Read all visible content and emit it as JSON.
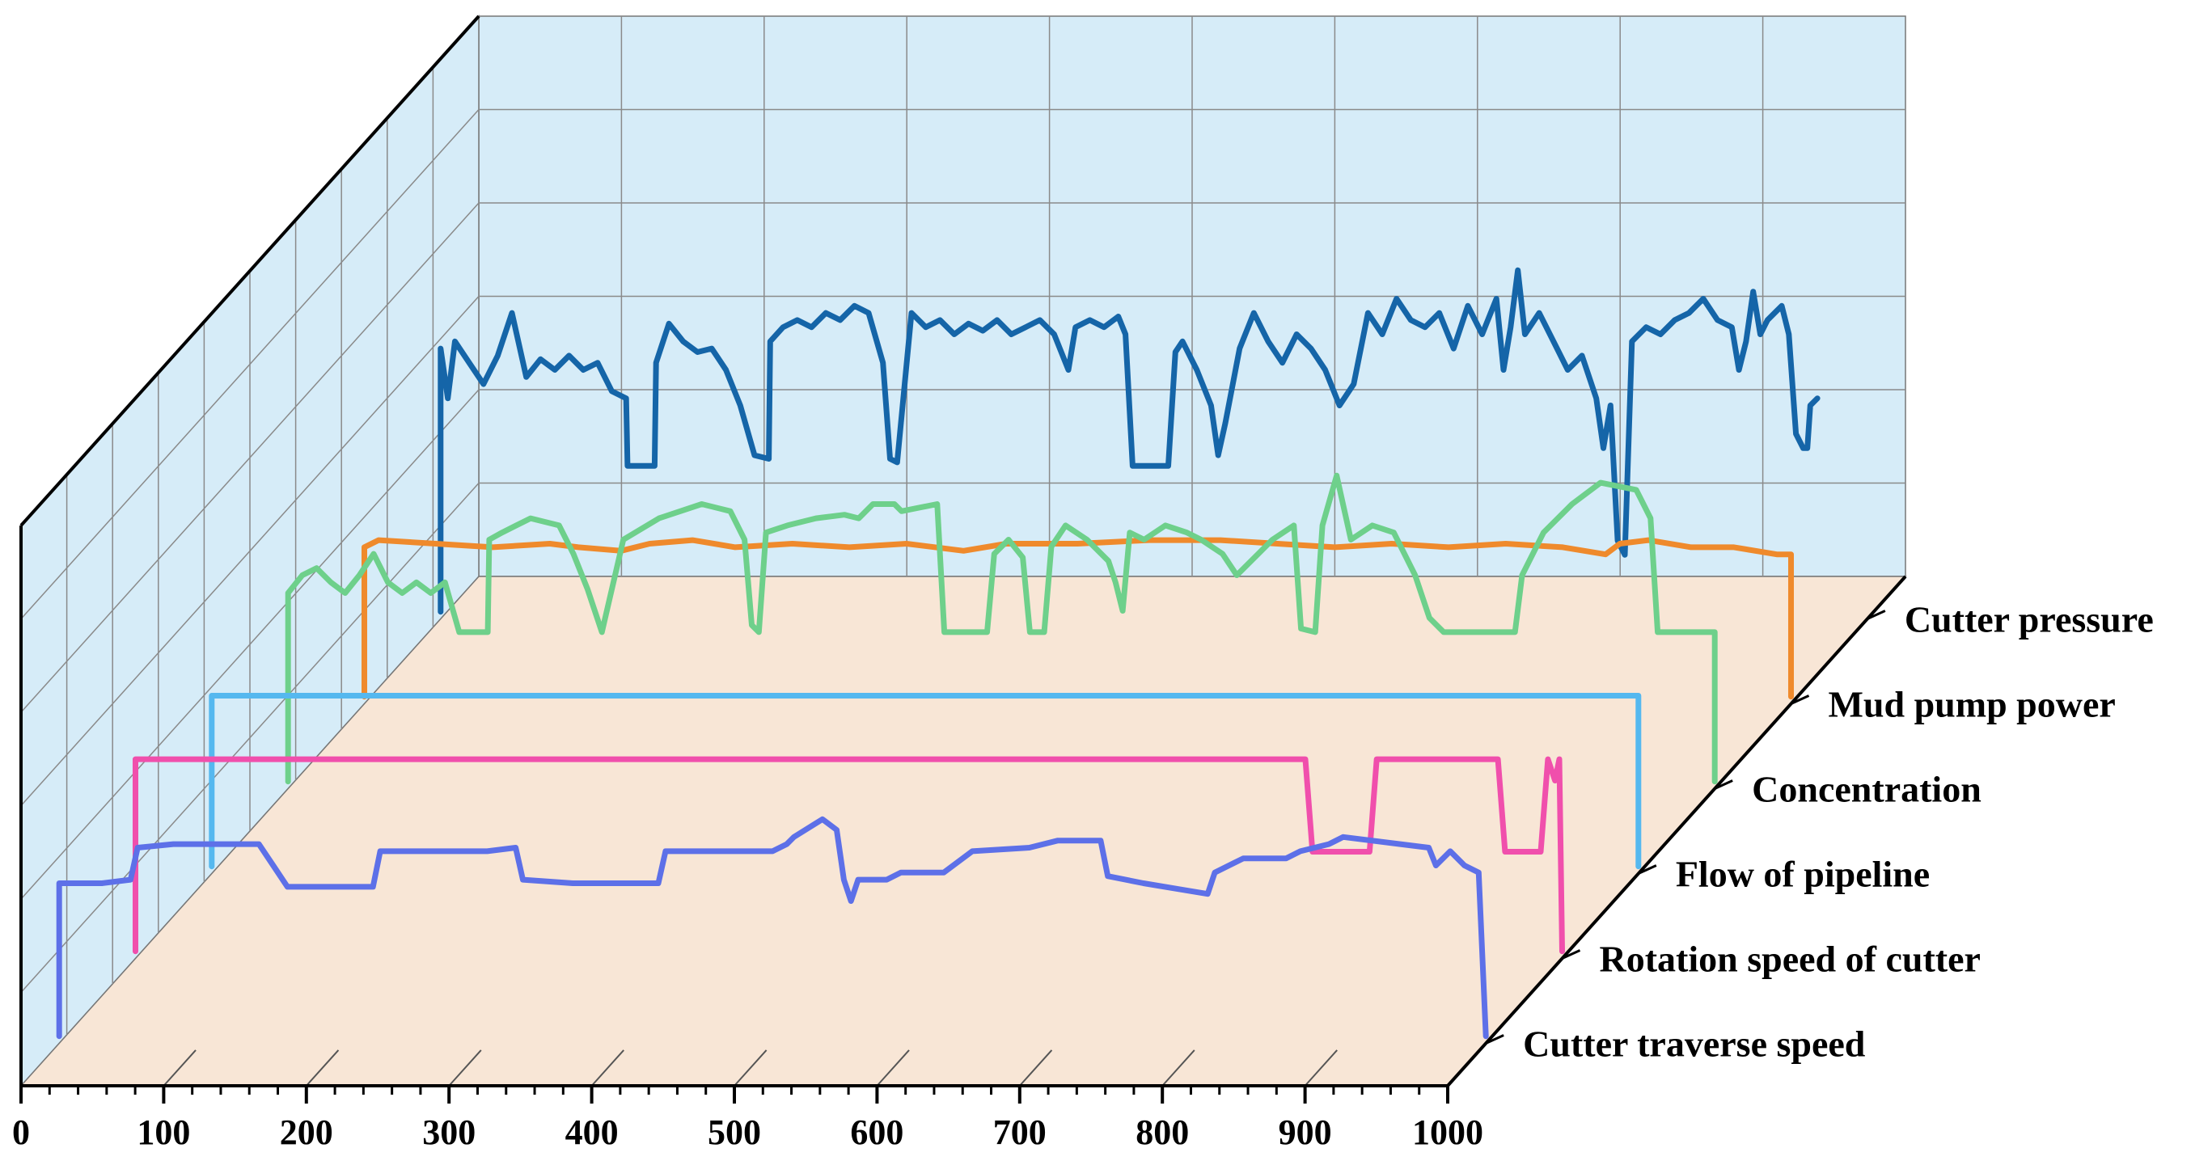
{
  "chart_data": {
    "type": "line",
    "projection": "3d-waterfall",
    "xlim": [
      0,
      1000
    ],
    "x_ticks": [
      "0",
      "100",
      "200",
      "300",
      "400",
      "500",
      "600",
      "700",
      "800",
      "900",
      "1000"
    ],
    "grid": true,
    "back_wall_color": "#d6ecf8",
    "floor_color": "#f8e6d6",
    "series": [
      {
        "name": "Cutter pressure",
        "color": "#1565a8",
        "points": [
          [
            0,
            0.02
          ],
          [
            0,
            0.76
          ],
          [
            5,
            0.62
          ],
          [
            10,
            0.78
          ],
          [
            20,
            0.72
          ],
          [
            30,
            0.66
          ],
          [
            40,
            0.74
          ],
          [
            50,
            0.86
          ],
          [
            60,
            0.68
          ],
          [
            70,
            0.73
          ],
          [
            80,
            0.7
          ],
          [
            90,
            0.74
          ],
          [
            100,
            0.7
          ],
          [
            110,
            0.72
          ],
          [
            120,
            0.64
          ],
          [
            130,
            0.62
          ],
          [
            131,
            0.43
          ],
          [
            150,
            0.43
          ],
          [
            151,
            0.72
          ],
          [
            160,
            0.83
          ],
          [
            170,
            0.78
          ],
          [
            180,
            0.75
          ],
          [
            190,
            0.76
          ],
          [
            200,
            0.7
          ],
          [
            210,
            0.6
          ],
          [
            220,
            0.46
          ],
          [
            230,
            0.45
          ],
          [
            231,
            0.78
          ],
          [
            240,
            0.82
          ],
          [
            250,
            0.84
          ],
          [
            260,
            0.82
          ],
          [
            270,
            0.86
          ],
          [
            280,
            0.84
          ],
          [
            290,
            0.88
          ],
          [
            300,
            0.86
          ],
          [
            310,
            0.72
          ],
          [
            315,
            0.45
          ],
          [
            320,
            0.44
          ],
          [
            330,
            0.86
          ],
          [
            340,
            0.82
          ],
          [
            350,
            0.84
          ],
          [
            360,
            0.8
          ],
          [
            370,
            0.83
          ],
          [
            380,
            0.81
          ],
          [
            390,
            0.84
          ],
          [
            400,
            0.8
          ],
          [
            410,
            0.82
          ],
          [
            420,
            0.84
          ],
          [
            430,
            0.8
          ],
          [
            440,
            0.7
          ],
          [
            445,
            0.82
          ],
          [
            455,
            0.84
          ],
          [
            465,
            0.82
          ],
          [
            475,
            0.85
          ],
          [
            480,
            0.8
          ],
          [
            485,
            0.43
          ],
          [
            510,
            0.43
          ],
          [
            515,
            0.75
          ],
          [
            520,
            0.78
          ],
          [
            530,
            0.7
          ],
          [
            540,
            0.6
          ],
          [
            545,
            0.46
          ],
          [
            550,
            0.55
          ],
          [
            560,
            0.76
          ],
          [
            570,
            0.86
          ],
          [
            580,
            0.78
          ],
          [
            590,
            0.72
          ],
          [
            600,
            0.8
          ],
          [
            610,
            0.76
          ],
          [
            620,
            0.7
          ],
          [
            630,
            0.6
          ],
          [
            640,
            0.66
          ],
          [
            650,
            0.86
          ],
          [
            660,
            0.8
          ],
          [
            670,
            0.9
          ],
          [
            680,
            0.84
          ],
          [
            690,
            0.82
          ],
          [
            700,
            0.86
          ],
          [
            710,
            0.76
          ],
          [
            720,
            0.88
          ],
          [
            730,
            0.8
          ],
          [
            740,
            0.9
          ],
          [
            745,
            0.7
          ],
          [
            750,
            0.82
          ],
          [
            755,
            0.98
          ],
          [
            760,
            0.8
          ],
          [
            770,
            0.86
          ],
          [
            780,
            0.78
          ],
          [
            790,
            0.7
          ],
          [
            800,
            0.74
          ],
          [
            810,
            0.62
          ],
          [
            815,
            0.48
          ],
          [
            820,
            0.6
          ],
          [
            825,
            0.22
          ],
          [
            830,
            0.18
          ],
          [
            835,
            0.78
          ],
          [
            845,
            0.82
          ],
          [
            855,
            0.8
          ],
          [
            865,
            0.84
          ],
          [
            875,
            0.86
          ],
          [
            885,
            0.9
          ],
          [
            895,
            0.84
          ],
          [
            905,
            0.82
          ],
          [
            910,
            0.7
          ],
          [
            915,
            0.78
          ],
          [
            920,
            0.92
          ],
          [
            925,
            0.8
          ],
          [
            930,
            0.84
          ],
          [
            940,
            0.88
          ],
          [
            945,
            0.8
          ],
          [
            950,
            0.52
          ],
          [
            955,
            0.48
          ],
          [
            958,
            0.48
          ],
          [
            960,
            0.6
          ],
          [
            965,
            0.62
          ]
        ]
      },
      {
        "name": "Mud pump power",
        "color": "#ef8a2c",
        "points": [
          [
            0,
            0.02
          ],
          [
            0,
            0.44
          ],
          [
            10,
            0.46
          ],
          [
            50,
            0.45
          ],
          [
            90,
            0.44
          ],
          [
            130,
            0.45
          ],
          [
            150,
            0.44
          ],
          [
            180,
            0.43
          ],
          [
            200,
            0.45
          ],
          [
            230,
            0.46
          ],
          [
            260,
            0.44
          ],
          [
            300,
            0.45
          ],
          [
            340,
            0.44
          ],
          [
            380,
            0.45
          ],
          [
            420,
            0.43
          ],
          [
            450,
            0.45
          ],
          [
            500,
            0.45
          ],
          [
            550,
            0.46
          ],
          [
            600,
            0.46
          ],
          [
            640,
            0.45
          ],
          [
            680,
            0.44
          ],
          [
            720,
            0.45
          ],
          [
            760,
            0.44
          ],
          [
            800,
            0.45
          ],
          [
            840,
            0.44
          ],
          [
            870,
            0.42
          ],
          [
            880,
            0.45
          ],
          [
            900,
            0.46
          ],
          [
            930,
            0.44
          ],
          [
            960,
            0.44
          ],
          [
            990,
            0.42
          ],
          [
            1000,
            0.42
          ],
          [
            1000,
            0.02
          ]
        ]
      },
      {
        "name": "Concentration",
        "color": "#6ed08b",
        "points": [
          [
            0,
            0.02
          ],
          [
            0,
            0.55
          ],
          [
            10,
            0.6
          ],
          [
            20,
            0.62
          ],
          [
            30,
            0.58
          ],
          [
            40,
            0.55
          ],
          [
            50,
            0.6
          ],
          [
            60,
            0.66
          ],
          [
            70,
            0.58
          ],
          [
            80,
            0.55
          ],
          [
            90,
            0.58
          ],
          [
            100,
            0.55
          ],
          [
            110,
            0.58
          ],
          [
            120,
            0.44
          ],
          [
            140,
            0.44
          ],
          [
            141,
            0.7
          ],
          [
            150,
            0.72
          ],
          [
            170,
            0.76
          ],
          [
            190,
            0.74
          ],
          [
            200,
            0.66
          ],
          [
            210,
            0.56
          ],
          [
            220,
            0.44
          ],
          [
            235,
            0.7
          ],
          [
            260,
            0.76
          ],
          [
            290,
            0.8
          ],
          [
            310,
            0.78
          ],
          [
            320,
            0.7
          ],
          [
            325,
            0.46
          ],
          [
            330,
            0.44
          ],
          [
            335,
            0.72
          ],
          [
            350,
            0.74
          ],
          [
            370,
            0.76
          ],
          [
            390,
            0.77
          ],
          [
            400,
            0.76
          ],
          [
            410,
            0.8
          ],
          [
            425,
            0.8
          ],
          [
            430,
            0.78
          ],
          [
            455,
            0.8
          ],
          [
            460,
            0.44
          ],
          [
            490,
            0.44
          ],
          [
            495,
            0.66
          ],
          [
            505,
            0.7
          ],
          [
            515,
            0.65
          ],
          [
            520,
            0.44
          ],
          [
            530,
            0.44
          ],
          [
            535,
            0.68
          ],
          [
            545,
            0.74
          ],
          [
            560,
            0.7
          ],
          [
            575,
            0.64
          ],
          [
            580,
            0.58
          ],
          [
            585,
            0.5
          ],
          [
            590,
            0.72
          ],
          [
            600,
            0.7
          ],
          [
            615,
            0.74
          ],
          [
            630,
            0.72
          ],
          [
            640,
            0.7
          ],
          [
            655,
            0.66
          ],
          [
            665,
            0.6
          ],
          [
            680,
            0.66
          ],
          [
            690,
            0.7
          ],
          [
            705,
            0.74
          ],
          [
            710,
            0.45
          ],
          [
            720,
            0.44
          ],
          [
            725,
            0.74
          ],
          [
            735,
            0.88
          ],
          [
            745,
            0.7
          ],
          [
            760,
            0.74
          ],
          [
            775,
            0.72
          ],
          [
            790,
            0.6
          ],
          [
            800,
            0.48
          ],
          [
            810,
            0.44
          ],
          [
            860,
            0.44
          ],
          [
            865,
            0.6
          ],
          [
            880,
            0.72
          ],
          [
            900,
            0.8
          ],
          [
            920,
            0.86
          ],
          [
            945,
            0.84
          ],
          [
            955,
            0.76
          ],
          [
            960,
            0.44
          ],
          [
            1000,
            0.44
          ],
          [
            1000,
            0.02
          ]
        ]
      },
      {
        "name": "Flow of pipeline",
        "color": "#55b8ef",
        "points": [
          [
            0,
            0.02
          ],
          [
            0,
            0.5
          ],
          [
            100,
            0.5
          ],
          [
            200,
            0.5
          ],
          [
            300,
            0.5
          ],
          [
            400,
            0.5
          ],
          [
            500,
            0.5
          ],
          [
            600,
            0.5
          ],
          [
            700,
            0.5
          ],
          [
            800,
            0.5
          ],
          [
            900,
            0.5
          ],
          [
            1000,
            0.5
          ],
          [
            1000,
            0.02
          ]
        ]
      },
      {
        "name": "Rotation speed of cutter",
        "color": "#f04fac",
        "points": [
          [
            0,
            0.02
          ],
          [
            0,
            0.56
          ],
          [
            100,
            0.56
          ],
          [
            200,
            0.56
          ],
          [
            300,
            0.56
          ],
          [
            400,
            0.56
          ],
          [
            500,
            0.56
          ],
          [
            600,
            0.56
          ],
          [
            700,
            0.56
          ],
          [
            800,
            0.56
          ],
          [
            820,
            0.56
          ],
          [
            825,
            0.3
          ],
          [
            865,
            0.3
          ],
          [
            870,
            0.56
          ],
          [
            905,
            0.56
          ],
          [
            910,
            0.56
          ],
          [
            955,
            0.56
          ],
          [
            960,
            0.3
          ],
          [
            985,
            0.3
          ],
          [
            990,
            0.56
          ],
          [
            995,
            0.5
          ],
          [
            998,
            0.56
          ],
          [
            1000,
            0.02
          ]
        ]
      },
      {
        "name": "Cutter traverse speed",
        "color": "#5d70e8",
        "points": [
          [
            0,
            0.02
          ],
          [
            0,
            0.45
          ],
          [
            30,
            0.45
          ],
          [
            50,
            0.46
          ],
          [
            55,
            0.55
          ],
          [
            80,
            0.56
          ],
          [
            140,
            0.56
          ],
          [
            150,
            0.5
          ],
          [
            160,
            0.44
          ],
          [
            180,
            0.44
          ],
          [
            220,
            0.44
          ],
          [
            225,
            0.54
          ],
          [
            260,
            0.54
          ],
          [
            300,
            0.54
          ],
          [
            320,
            0.55
          ],
          [
            325,
            0.46
          ],
          [
            360,
            0.45
          ],
          [
            420,
            0.45
          ],
          [
            425,
            0.54
          ],
          [
            470,
            0.54
          ],
          [
            500,
            0.54
          ],
          [
            510,
            0.56
          ],
          [
            515,
            0.58
          ],
          [
            535,
            0.63
          ],
          [
            545,
            0.6
          ],
          [
            550,
            0.46
          ],
          [
            555,
            0.4
          ],
          [
            560,
            0.46
          ],
          [
            580,
            0.46
          ],
          [
            590,
            0.48
          ],
          [
            620,
            0.48
          ],
          [
            640,
            0.54
          ],
          [
            680,
            0.55
          ],
          [
            700,
            0.57
          ],
          [
            730,
            0.57
          ],
          [
            735,
            0.47
          ],
          [
            760,
            0.45
          ],
          [
            790,
            0.43
          ],
          [
            805,
            0.42
          ],
          [
            810,
            0.48
          ],
          [
            830,
            0.52
          ],
          [
            860,
            0.52
          ],
          [
            870,
            0.54
          ],
          [
            890,
            0.56
          ],
          [
            900,
            0.58
          ],
          [
            940,
            0.56
          ],
          [
            960,
            0.55
          ],
          [
            965,
            0.5
          ],
          [
            975,
            0.54
          ],
          [
            985,
            0.5
          ],
          [
            995,
            0.48
          ],
          [
            1000,
            0.02
          ]
        ]
      }
    ]
  }
}
